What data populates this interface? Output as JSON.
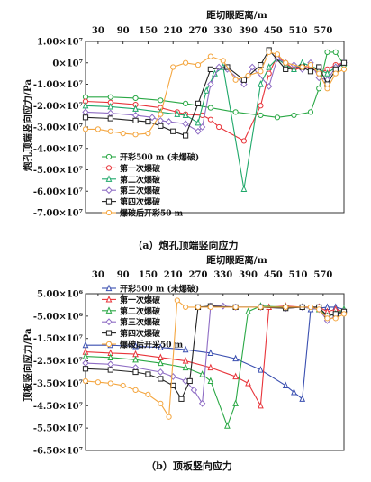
{
  "chart_data": [
    {
      "type": "line",
      "caption": "（a）炮孔顶端竖向应力",
      "xlabel": "距切眼距离/m",
      "ylabel": "炮孔顶端竖向应力/Pa",
      "x_ticks": [
        "30",
        "90",
        "150",
        "210",
        "270",
        "330",
        "390",
        "450",
        "510",
        "570"
      ],
      "y_ticks": [
        "1.00×10⁷",
        "0×10⁷",
        "-1.00×10⁷",
        "-2.00×10⁷",
        "-3.00×10⁷",
        "-4.00×10⁷",
        "-5.00×10⁷",
        "-6.00×10⁷",
        "-7.00×10⁷"
      ],
      "xlim": [
        0,
        620
      ],
      "ylim": [
        -70000000,
        10000000
      ],
      "legend_position": "lower-left",
      "series": [
        {
          "name": "开彩500 m (未爆破)",
          "color": "#2aa845",
          "marker": "circle",
          "points": [
            [
              0,
              -16000000
            ],
            [
              60,
              -16000000
            ],
            [
              120,
              -16500000
            ],
            [
              180,
              -17500000
            ],
            [
              240,
              -19000000
            ],
            [
              300,
              -21000000
            ],
            [
              360,
              -23000000
            ],
            [
              420,
              -24500000
            ],
            [
              460,
              -25500000
            ],
            [
              500,
              -24500000
            ],
            [
              540,
              -23000000
            ],
            [
              560,
              -12000000
            ],
            [
              580,
              5000000
            ],
            [
              600,
              5000000
            ],
            [
              620,
              -1000000
            ]
          ]
        },
        {
          "name": "第一次爆破",
          "color": "#e8343a",
          "marker": "circle",
          "points": [
            [
              0,
              -18000000
            ],
            [
              60,
              -18500000
            ],
            [
              120,
              -19500000
            ],
            [
              180,
              -21000000
            ],
            [
              220,
              -23000000
            ],
            [
              240,
              -24000000
            ],
            [
              280,
              -24500000
            ],
            [
              300,
              -26500000
            ],
            [
              320,
              -30000000
            ],
            [
              380,
              -36500000
            ],
            [
              420,
              -20000000
            ],
            [
              440,
              -5000000
            ],
            [
              460,
              3000000
            ],
            [
              480,
              0
            ],
            [
              500,
              -3000000
            ],
            [
              540,
              -2000000
            ],
            [
              560,
              -5000000
            ],
            [
              580,
              -3000000
            ],
            [
              600,
              -1000000
            ],
            [
              620,
              0
            ]
          ]
        },
        {
          "name": "第二次爆破",
          "color": "#1fa86a",
          "marker": "triangle",
          "points": [
            [
              0,
              -20000000
            ],
            [
              60,
              -20500000
            ],
            [
              120,
              -21500000
            ],
            [
              180,
              -23000000
            ],
            [
              220,
              -24000000
            ],
            [
              240,
              -24500000
            ],
            [
              270,
              -28000000
            ],
            [
              290,
              -13000000
            ],
            [
              310,
              -5000000
            ],
            [
              330,
              -2000000
            ],
            [
              380,
              -59000000
            ],
            [
              420,
              -10000000
            ],
            [
              440,
              -2000000
            ],
            [
              460,
              2000000
            ],
            [
              480,
              -1000000
            ],
            [
              500,
              -3000000
            ],
            [
              520,
              0
            ],
            [
              560,
              -3000000
            ],
            [
              580,
              -5000000
            ],
            [
              600,
              -2000000
            ],
            [
              620,
              0
            ]
          ]
        },
        {
          "name": "第三次爆破",
          "color": "#8e6cc4",
          "marker": "diamond",
          "points": [
            [
              0,
              -23000000
            ],
            [
              60,
              -23500000
            ],
            [
              120,
              -24500000
            ],
            [
              160,
              -25500000
            ],
            [
              180,
              -27000000
            ],
            [
              200,
              -27500000
            ],
            [
              240,
              -28500000
            ],
            [
              270,
              -32000000
            ],
            [
              280,
              -30000000
            ],
            [
              300,
              -10000000
            ],
            [
              320,
              -2000000
            ],
            [
              340,
              -3000000
            ],
            [
              380,
              -10000000
            ],
            [
              400,
              -2000000
            ],
            [
              440,
              -11000000
            ],
            [
              460,
              2000000
            ],
            [
              480,
              0
            ],
            [
              500,
              -1000000
            ],
            [
              520,
              -3000000
            ],
            [
              540,
              0
            ],
            [
              560,
              -7000000
            ],
            [
              580,
              -8000000
            ],
            [
              600,
              -2000000
            ],
            [
              620,
              0
            ]
          ]
        },
        {
          "name": "第四次爆破",
          "color": "#222222",
          "marker": "square",
          "points": [
            [
              0,
              -25500000
            ],
            [
              60,
              -26000000
            ],
            [
              120,
              -27000000
            ],
            [
              150,
              -27500000
            ],
            [
              180,
              -29500000
            ],
            [
              210,
              -32000000
            ],
            [
              240,
              -34000000
            ],
            [
              270,
              -19000000
            ],
            [
              300,
              -3000000
            ],
            [
              340,
              -2000000
            ],
            [
              380,
              -8000000
            ],
            [
              420,
              -1000000
            ],
            [
              440,
              6000000
            ],
            [
              480,
              -3000000
            ],
            [
              520,
              -2000000
            ],
            [
              540,
              -4000000
            ],
            [
              560,
              -2000000
            ],
            [
              580,
              -10000000
            ],
            [
              600,
              -3000000
            ],
            [
              620,
              0
            ]
          ]
        },
        {
          "name": "爆破后开彩50 m",
          "color": "#f4a640",
          "marker": "circle",
          "points": [
            [
              0,
              -31000000
            ],
            [
              30,
              -31000000
            ],
            [
              60,
              -32000000
            ],
            [
              90,
              -33000000
            ],
            [
              120,
              -33500000
            ],
            [
              150,
              -33000000
            ],
            [
              180,
              -24000000
            ],
            [
              210,
              -2000000
            ],
            [
              240,
              0
            ],
            [
              270,
              -1000000
            ],
            [
              300,
              3000000
            ],
            [
              330,
              1000000
            ],
            [
              360,
              -8000000
            ],
            [
              390,
              -6000000
            ],
            [
              420,
              -4000000
            ],
            [
              440,
              5000000
            ],
            [
              460,
              4000000
            ],
            [
              480,
              0
            ],
            [
              520,
              -2000000
            ],
            [
              540,
              -1000000
            ],
            [
              560,
              -5000000
            ],
            [
              580,
              -12000000
            ],
            [
              600,
              -5000000
            ],
            [
              620,
              -3000000
            ]
          ]
        }
      ]
    },
    {
      "type": "line",
      "caption": "（b）顶板竖向应力",
      "xlabel": "距切眼距离/m",
      "ylabel": "顶板竖向应力/Pa",
      "x_ticks": [
        "30",
        "90",
        "150",
        "210",
        "270",
        "330",
        "390",
        "450",
        "510",
        "570"
      ],
      "y_ticks": [
        "5.00×10⁶",
        "-5.00×10⁶",
        "-1.50×10⁷",
        "-2.50×10⁷",
        "-3.50×10⁷",
        "-4.50×10⁷",
        "-5.50×10⁷",
        "-6.50×10⁷"
      ],
      "xlim": [
        0,
        620
      ],
      "ylim": [
        -65000000,
        5000000
      ],
      "legend_position": "top-left",
      "series": [
        {
          "name": "开彩500 m (未爆破)",
          "color": "#3a4fb0",
          "marker": "triangle",
          "points": [
            [
              0,
              -18000000
            ],
            [
              60,
              -18000000
            ],
            [
              120,
              -18500000
            ],
            [
              180,
              -19000000
            ],
            [
              240,
              -20000000
            ],
            [
              300,
              -21500000
            ],
            [
              360,
              -24000000
            ],
            [
              420,
              -29000000
            ],
            [
              480,
              -36000000
            ],
            [
              500,
              -39000000
            ],
            [
              520,
              -42000000
            ],
            [
              540,
              -2000000
            ],
            [
              580,
              -1000000
            ],
            [
              600,
              -1000000
            ],
            [
              620,
              -2000000
            ]
          ]
        },
        {
          "name": "第一次爆破",
          "color": "#e8343a",
          "marker": "triangle",
          "points": [
            [
              0,
              -21000000
            ],
            [
              60,
              -21500000
            ],
            [
              120,
              -22000000
            ],
            [
              180,
              -23500000
            ],
            [
              240,
              -25000000
            ],
            [
              300,
              -28000000
            ],
            [
              360,
              -32000000
            ],
            [
              390,
              -35000000
            ],
            [
              420,
              -45000000
            ],
            [
              440,
              -1000000
            ],
            [
              480,
              -500000
            ],
            [
              520,
              -1000000
            ],
            [
              560,
              -1000000
            ],
            [
              580,
              -3000000
            ],
            [
              600,
              -2000000
            ],
            [
              620,
              -3000000
            ]
          ]
        },
        {
          "name": "第二次爆破",
          "color": "#2aa845",
          "marker": "triangle",
          "points": [
            [
              0,
              -23000000
            ],
            [
              60,
              -23500000
            ],
            [
              120,
              -24500000
            ],
            [
              180,
              -26000000
            ],
            [
              240,
              -28000000
            ],
            [
              280,
              -31000000
            ],
            [
              300,
              -34000000
            ],
            [
              340,
              -54000000
            ],
            [
              360,
              -44000000
            ],
            [
              390,
              -3000000
            ],
            [
              420,
              -500000
            ],
            [
              480,
              -1000000
            ],
            [
              520,
              -1000000
            ],
            [
              560,
              -2000000
            ],
            [
              580,
              -5000000
            ],
            [
              600,
              -4000000
            ],
            [
              620,
              -2000000
            ]
          ]
        },
        {
          "name": "第三次爆破",
          "color": "#8e6cc4",
          "marker": "diamond",
          "points": [
            [
              0,
              -26000000
            ],
            [
              60,
              -26500000
            ],
            [
              120,
              -28000000
            ],
            [
              180,
              -30000000
            ],
            [
              210,
              -32000000
            ],
            [
              240,
              -34000000
            ],
            [
              260,
              -38000000
            ],
            [
              280,
              -44000000
            ],
            [
              300,
              -500000
            ],
            [
              330,
              -500000
            ],
            [
              360,
              -1000000
            ],
            [
              420,
              -1000000
            ],
            [
              480,
              -1500000
            ],
            [
              520,
              -1000000
            ],
            [
              560,
              -2000000
            ],
            [
              580,
              -7000000
            ],
            [
              600,
              -5000000
            ],
            [
              620,
              -3000000
            ]
          ]
        },
        {
          "name": "第四次爆破",
          "color": "#222222",
          "marker": "square",
          "points": [
            [
              0,
              -28500000
            ],
            [
              60,
              -29000000
            ],
            [
              120,
              -30000000
            ],
            [
              150,
              -31000000
            ],
            [
              180,
              -33000000
            ],
            [
              210,
              -36000000
            ],
            [
              230,
              -42000000
            ],
            [
              250,
              -34000000
            ],
            [
              270,
              -1000000
            ],
            [
              300,
              -500000
            ],
            [
              360,
              -1000000
            ],
            [
              420,
              -1000000
            ],
            [
              480,
              -1500000
            ],
            [
              520,
              -1000000
            ],
            [
              560,
              -1000000
            ],
            [
              580,
              -5000000
            ],
            [
              600,
              -4000000
            ],
            [
              620,
              -3000000
            ]
          ]
        },
        {
          "name": "爆破后开采50 m",
          "color": "#f4a640",
          "marker": "circle",
          "points": [
            [
              0,
              -34000000
            ],
            [
              30,
              -34500000
            ],
            [
              60,
              -35000000
            ],
            [
              90,
              -36000000
            ],
            [
              120,
              -38000000
            ],
            [
              150,
              -40000000
            ],
            [
              180,
              -44000000
            ],
            [
              200,
              -50000000
            ],
            [
              220,
              2000000
            ],
            [
              240,
              -1000000
            ],
            [
              270,
              -1000000
            ],
            [
              300,
              -1000000
            ],
            [
              360,
              -1000000
            ],
            [
              420,
              -1000000
            ],
            [
              480,
              -1000000
            ],
            [
              540,
              -1000000
            ],
            [
              560,
              -2000000
            ],
            [
              580,
              -6000000
            ],
            [
              600,
              -6000000
            ],
            [
              620,
              -4000000
            ]
          ]
        }
      ]
    }
  ]
}
